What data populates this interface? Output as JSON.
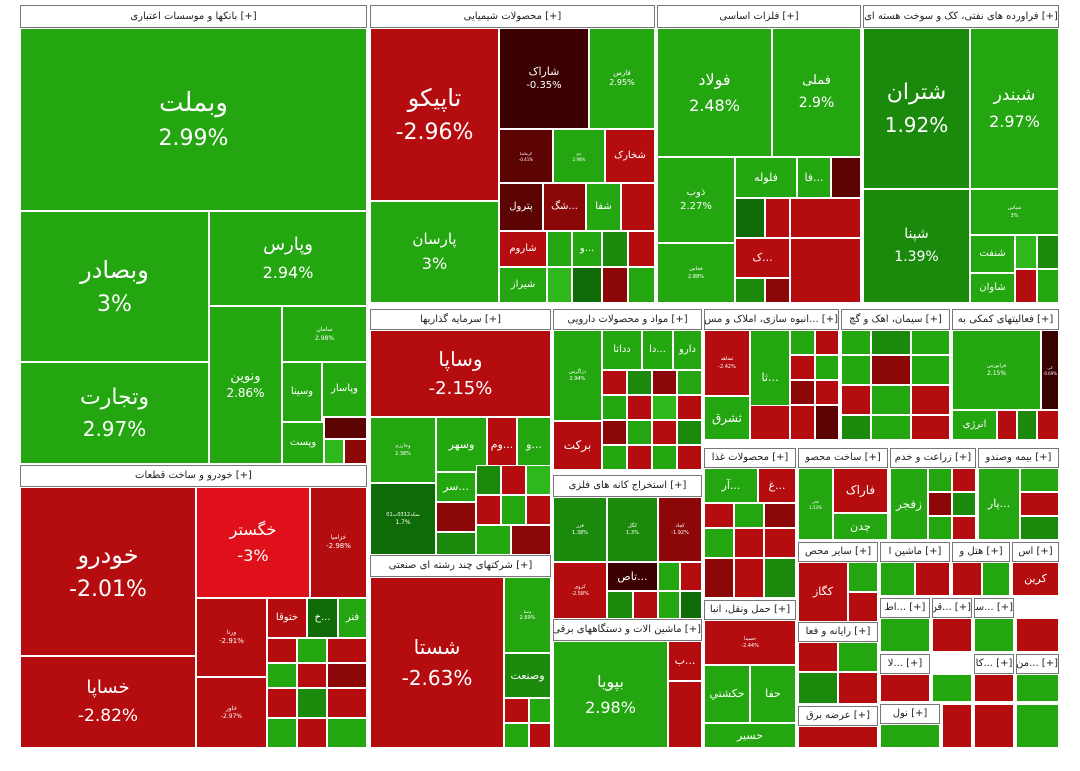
{
  "colors": {
    "g1": "#2fb81c",
    "g2": "#24a611",
    "g3": "#1b8a0c",
    "g4": "#0f6b07",
    "g5": "#0a4d04",
    "r1": "#e0101a",
    "r2": "#b50c0f",
    "r3": "#8c0707",
    "r4": "#5c0303",
    "r5": "#3b0101"
  },
  "chart_data": {
    "type": "treemap",
    "metric": "daily percent change",
    "sectors": [
      {
        "name": "[+] بانکها و موسسات اعتباری",
        "stocks": [
          {
            "name": "وبملت",
            "value": 2.99
          },
          {
            "name": "وبصادر",
            "value": 3
          },
          {
            "name": "وتجارت",
            "value": 2.97
          },
          {
            "name": "وپارس",
            "value": 2.94
          },
          {
            "name": "ونوین",
            "value": 2.86
          },
          {
            "name": "سامان",
            "value": 2.98
          },
          {
            "name": "وسینا"
          },
          {
            "name": "وپاسار"
          },
          {
            "name": "وپست"
          }
        ]
      },
      {
        "name": "[+] محصولات شیمیایی",
        "stocks": [
          {
            "name": "تاپیکو",
            "value": -2.96
          },
          {
            "name": "شاراک",
            "value": -0.35
          },
          {
            "name": "فارس",
            "value": 2.95
          },
          {
            "name": "پارسان",
            "value": 3
          },
          {
            "name": "شخارک"
          },
          {
            "name": "پترول"
          },
          {
            "name": "...شگ"
          },
          {
            "name": "شفا"
          },
          {
            "name": "شاروم"
          },
          {
            "name": "شیراز"
          },
          {
            "name": "...و"
          },
          {
            "name": "کرماشا",
            "value": -0.41
          },
          {
            "name": "جم",
            "value": 2.98
          }
        ]
      },
      {
        "name": "[+] فلزات اساسی",
        "stocks": [
          {
            "name": "فولاد",
            "value": 2.48
          },
          {
            "name": "فملی",
            "value": 2.9
          },
          {
            "name": "ذوب",
            "value": 2.27
          },
          {
            "name": "فلوله"
          },
          {
            "name": "...فا"
          },
          {
            "name": "...ک"
          },
          {
            "name": "فخاس",
            "value": 2.88
          }
        ]
      },
      {
        "name": "[+] فراورده های نفتی، کک و سوخت هسته ای",
        "stocks": [
          {
            "name": "شتران",
            "value": 1.92
          },
          {
            "name": "شبندر",
            "value": 2.97
          },
          {
            "name": "شپنا",
            "value": 1.39
          },
          {
            "name": "شنفت"
          },
          {
            "name": "شاوان"
          },
          {
            "name": "شپاس",
            "value": 3
          }
        ]
      },
      {
        "name": "[+] سرمایه گذاریها",
        "stocks": [
          {
            "name": "وساپا",
            "value": -2.15
          },
          {
            "name": "وخارزم",
            "value": 2.38
          },
          {
            "name": "وسهر"
          },
          {
            "name": "...وم"
          },
          {
            "name": "...و"
          },
          {
            "name": "...سر"
          },
          {
            "name": "سکه0312ب01",
            "value": 1.7
          }
        ]
      },
      {
        "name": "[+] مواد و محصولات دارویی",
        "stocks": [
          {
            "name": "دارو"
          },
          {
            "name": "...دا"
          },
          {
            "name": "دداتا"
          },
          {
            "name": "برکت"
          },
          {
            "name": "دزاگرس",
            "value": 2.94
          }
        ]
      },
      {
        "name": "[+] ...انبوه سازی، املاک و مس",
        "stocks": [
          {
            "name": "ثشاهد",
            "value": -2.42
          },
          {
            "name": "...ثا"
          },
          {
            "name": "ثشرق"
          }
        ]
      },
      {
        "name": "[+] سیمان، اهک و گچ",
        "stocks": []
      },
      {
        "name": "[+] فعالیتهای کمکی به",
        "stocks": [
          {
            "name": "فرابورس",
            "value": 2.15
          },
          {
            "name": "کی",
            "value": -0.69
          },
          {
            "name": "انرژی"
          }
        ]
      },
      {
        "name": "[+] خودرو و ساخت قطعات",
        "stocks": [
          {
            "name": "خودرو",
            "value": -2.01
          },
          {
            "name": "خگستر",
            "value": -3
          },
          {
            "name": "خساپا",
            "value": -2.82
          },
          {
            "name": "خزامیا",
            "value": -2.98
          },
          {
            "name": "ختوقا"
          },
          {
            "name": "...خ"
          },
          {
            "name": "فنر"
          },
          {
            "name": "ورنا",
            "value": -2.91
          },
          {
            "name": "خاور",
            "value": -2.97
          }
        ]
      },
      {
        "name": "[+] شرکتهای چند رشته ای صنعتی",
        "stocks": [
          {
            "name": "شستا",
            "value": -2.63
          },
          {
            "name": "وصنعت"
          },
          {
            "name": "وصنا",
            "value": 2.69
          }
        ]
      },
      {
        "name": "[+] استخراج کانه های فلزی",
        "stocks": [
          {
            "name": "فزر",
            "value": 1.38
          },
          {
            "name": "کگل",
            "value": 1.3
          },
          {
            "name": "کچاد",
            "value": -1.92
          },
          {
            "name": "کروی",
            "value": -2.58
          },
          {
            "name": "...تاص"
          }
        ]
      },
      {
        "name": "[+] ماشین الات و دستگاههای برقی",
        "stocks": [
          {
            "name": "بپویا",
            "value": 2.98
          },
          {
            "name": "...ب"
          }
        ]
      },
      {
        "name": "[+] محصولات غذا",
        "stocks": [
          {
            "name": "...غ"
          },
          {
            "name": "...آر"
          }
        ]
      },
      {
        "name": "[+] ساخت محصو",
        "stocks": [
          {
            "name": "فاراک"
          },
          {
            "name": "چدن"
          },
          {
            "name": "فجر",
            "value": 1.53
          }
        ]
      },
      {
        "name": "[+] زراعت و خدم",
        "stocks": [
          {
            "name": "زفجر"
          }
        ]
      },
      {
        "name": "[+] بیمه وصندو",
        "stocks": [
          {
            "name": "...پار"
          }
        ]
      },
      {
        "name": "[+] سایر محص",
        "stocks": [
          {
            "name": "کگاز"
          }
        ]
      },
      {
        "name": "[+] ماشین ا",
        "stocks": []
      },
      {
        "name": "[+] هتل و",
        "stocks": []
      },
      {
        "name": "[+] اس",
        "stocks": [
          {
            "name": "کرین"
          }
        ]
      },
      {
        "name": "[+] حمل ونقل، انبا",
        "stocks": [
          {
            "name": "حسینا",
            "value": -2.44
          },
          {
            "name": "حکشتي"
          },
          {
            "name": "حفا"
          },
          {
            "name": "حسير"
          }
        ]
      },
      {
        "name": "[+] رایانه و فعا",
        "stocks": []
      },
      {
        "name": "[+] عرضه برق",
        "stocks": []
      },
      {
        "name": "[+] نول",
        "stocks": []
      },
      {
        "name": "[+] ...اط",
        "stocks": []
      },
      {
        "name": "[+] ...قن",
        "stocks": []
      },
      {
        "name": "[+] ...سا",
        "stocks": []
      },
      {
        "name": "[+] ...لا",
        "stocks": []
      },
      {
        "name": "[+] ...کا",
        "stocks": []
      },
      {
        "name": "[+] ...من",
        "stocks": []
      }
    ]
  }
}
